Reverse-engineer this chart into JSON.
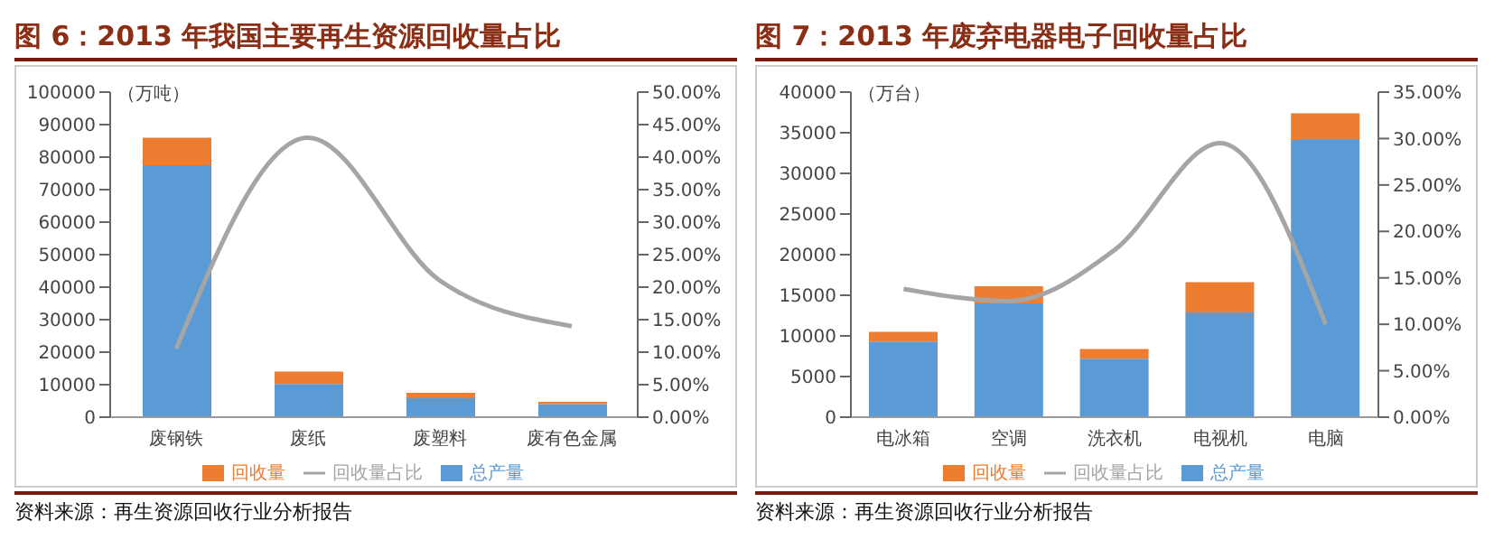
{
  "chart_data": [
    {
      "type": "bar",
      "title": "图 6：2013 年我国主要再生资源回收量占比",
      "ylabel": "（万吨）",
      "categories": [
        "废钢铁",
        "废纸",
        "废塑料",
        "废有色金属"
      ],
      "stacked": true,
      "legend": "bottom",
      "grid": false,
      "series": [
        {
          "name": "总产量",
          "color": "#5b9bd5",
          "values": [
            77500,
            10200,
            5800,
            4000
          ]
        },
        {
          "name": "回收量",
          "color": "#ed7d31",
          "values": [
            8500,
            3800,
            1700,
            700
          ]
        },
        {
          "name": "回收量占比",
          "type": "line",
          "axis": "y2",
          "color": "#a5a5a5",
          "values": [
            10.5,
            43,
            21,
            14
          ]
        }
      ],
      "ylim": [
        0,
        100000
      ],
      "yticks": [
        0,
        10000,
        20000,
        30000,
        40000,
        50000,
        60000,
        70000,
        80000,
        90000,
        100000
      ],
      "y2lim": [
        0,
        50
      ],
      "y2ticks": [
        {
          "value": 0,
          "label": "0.00%"
        },
        {
          "value": 5,
          "label": "5.00%"
        },
        {
          "value": 10,
          "label": "10.00%"
        },
        {
          "value": 15,
          "label": "15.00%"
        },
        {
          "value": 20,
          "label": "20.00%"
        },
        {
          "value": 25,
          "label": "25.00%"
        },
        {
          "value": 30,
          "label": "30.00%"
        },
        {
          "value": 35,
          "label": "35.00%"
        },
        {
          "value": 40,
          "label": "40.00%"
        },
        {
          "value": 45,
          "label": "45.00%"
        },
        {
          "value": 50,
          "label": "50.00%"
        }
      ],
      "annotations": [
        "资料来源：再生资源回收行业分析报告"
      ]
    },
    {
      "type": "bar",
      "title": "图 7：2013 年废弃电器电子回收量占比",
      "ylabel": "（万台）",
      "categories": [
        "电冰箱",
        "空调",
        "洗衣机",
        "电视机",
        "电脑"
      ],
      "stacked": true,
      "legend": "bottom",
      "grid": false,
      "series": [
        {
          "name": "总产量",
          "color": "#5b9bd5",
          "values": [
            9300,
            14000,
            7200,
            12900,
            34100
          ]
        },
        {
          "name": "回收量",
          "color": "#ed7d31",
          "values": [
            1200,
            2100,
            1200,
            3700,
            3300
          ]
        },
        {
          "name": "回收量占比",
          "type": "line",
          "axis": "y2",
          "color": "#a5a5a5",
          "values": [
            13.8,
            12.5,
            18,
            29.5,
            10
          ]
        }
      ],
      "ylim": [
        0,
        40000
      ],
      "yticks": [
        0,
        5000,
        10000,
        15000,
        20000,
        25000,
        30000,
        35000,
        40000
      ],
      "y2lim": [
        0,
        35
      ],
      "y2ticks": [
        {
          "value": 0,
          "label": "0.00%"
        },
        {
          "value": 5,
          "label": "5.00%"
        },
        {
          "value": 10,
          "label": "10.00%"
        },
        {
          "value": 15,
          "label": "15.00%"
        },
        {
          "value": 20,
          "label": "20.00%"
        },
        {
          "value": 25,
          "label": "25.00%"
        },
        {
          "value": 30,
          "label": "30.00%"
        },
        {
          "value": 35,
          "label": "35.00%"
        }
      ],
      "annotations": [
        "资料来源：再生资源回收行业分析报告"
      ]
    }
  ]
}
